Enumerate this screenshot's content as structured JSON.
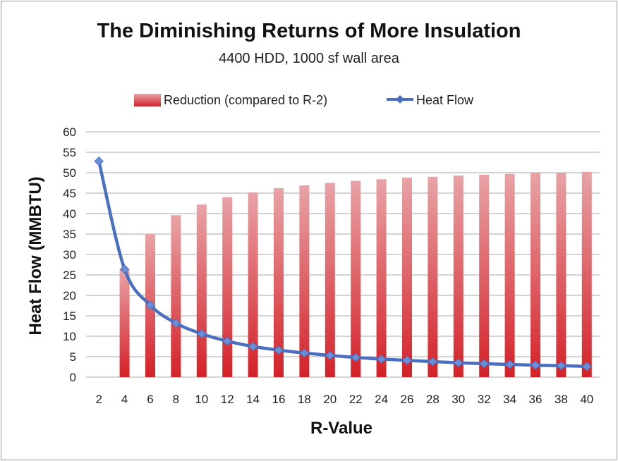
{
  "chart_data": {
    "type": "bar",
    "title": "The Diminishing Returns of More Insulation",
    "subtitle": "4400 HDD, 1000 sf wall area",
    "xlabel": "R-Value",
    "ylabel": "Heat Flow (MMBTU)",
    "ylim": [
      0,
      60
    ],
    "yticks": [
      0,
      5,
      10,
      15,
      20,
      25,
      30,
      35,
      40,
      45,
      50,
      55,
      60
    ],
    "grid": true,
    "legend_position": "top",
    "categories": [
      "2",
      "4",
      "6",
      "8",
      "10",
      "12",
      "14",
      "16",
      "18",
      "20",
      "22",
      "24",
      "26",
      "28",
      "30",
      "32",
      "34",
      "36",
      "38",
      "40"
    ],
    "series": [
      {
        "name": "Reduction (compared to R-2)",
        "kind": "bar",
        "color": "#d9252c",
        "values": [
          0,
          26.4,
          35.1,
          39.6,
          42.2,
          44.0,
          45.2,
          46.2,
          46.9,
          47.5,
          48.0,
          48.4,
          48.8,
          49.0,
          49.3,
          49.5,
          49.7,
          49.9,
          50.0,
          50.2
        ]
      },
      {
        "name": "Heat Flow",
        "kind": "line",
        "color": "#4a6fc0",
        "values": [
          52.8,
          26.4,
          17.6,
          13.2,
          10.6,
          8.8,
          7.5,
          6.6,
          5.9,
          5.3,
          4.8,
          4.4,
          4.1,
          3.8,
          3.5,
          3.3,
          3.1,
          2.9,
          2.8,
          2.6
        ]
      }
    ]
  }
}
